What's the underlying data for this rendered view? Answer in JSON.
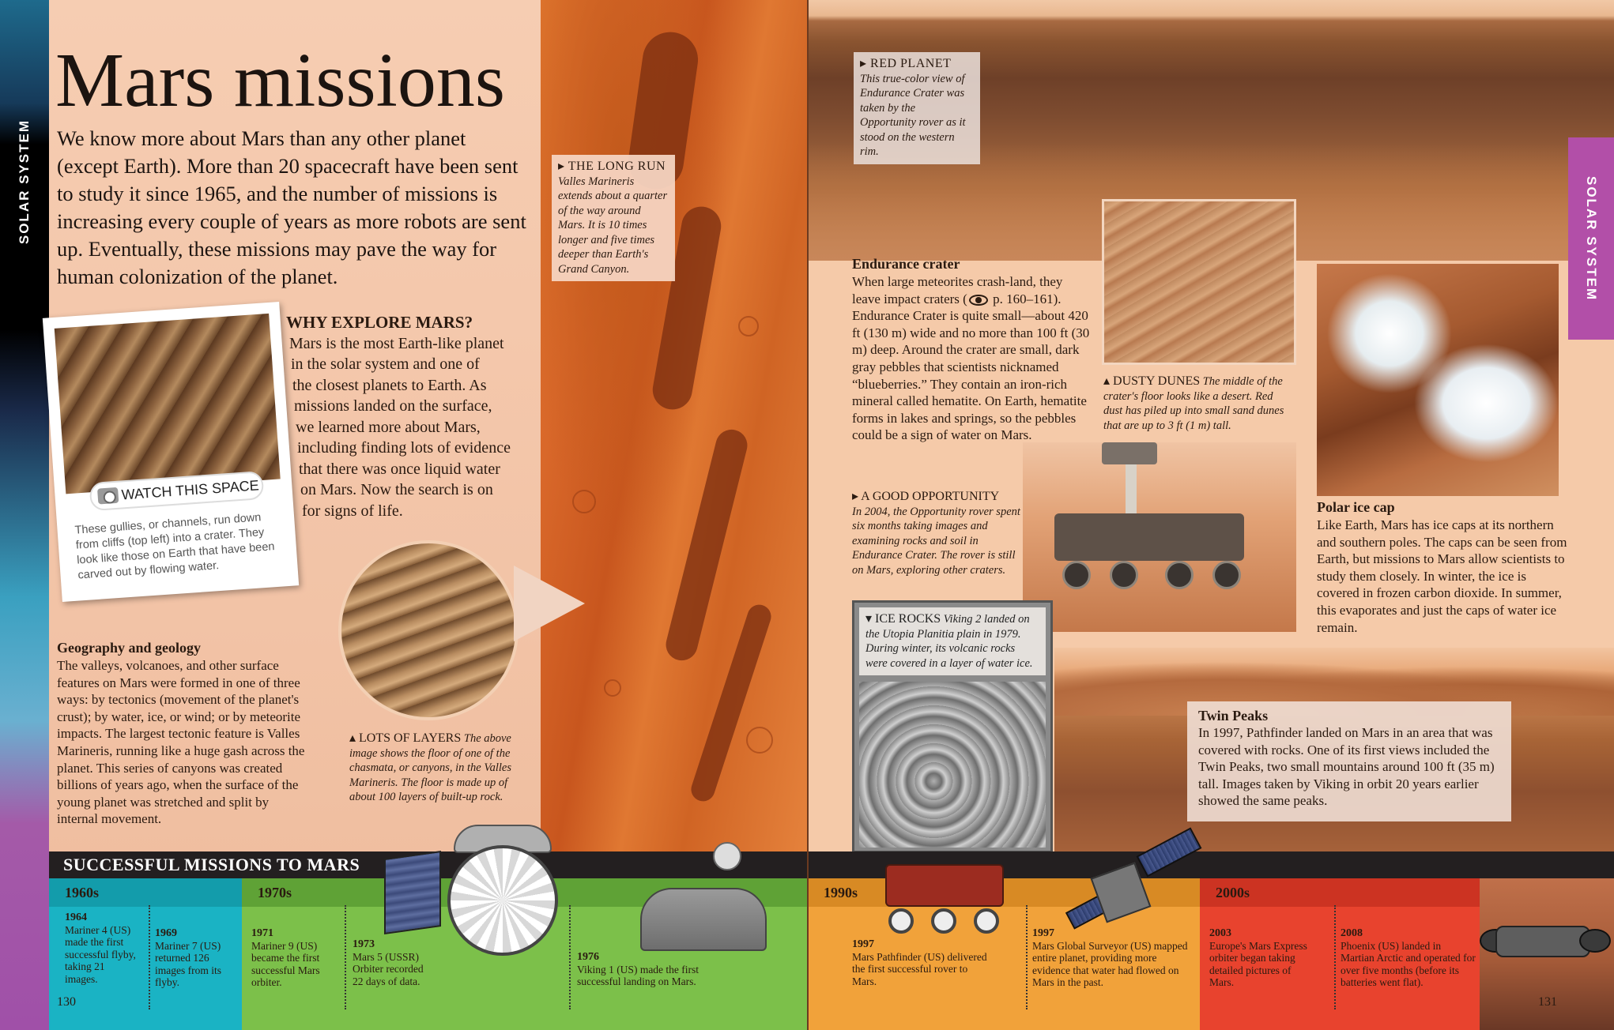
{
  "left_tab_label": "SOLAR SYSTEM",
  "right_tab_label": "SOLAR SYSTEM",
  "title": "Mars missions",
  "intro": "We know more about Mars than any other planet (except Earth). More than 20 spacecraft have been sent to study it since 1965, and the number of missions is increasing every couple of years as more robots are sent up. Eventually, these missions may pave the way for human colonization of the planet.",
  "long_run": {
    "head": "▸ THE LONG RUN",
    "text": "Valles Marineris extends about a quarter of the way around Mars. It is 10 times longer and five times deeper than Earth's Grand Canyon."
  },
  "why_explore": {
    "head": "WHY EXPLORE MARS?",
    "lines": [
      "Mars is the most Earth-like planet",
      "in the solar system and one of",
      "the closest planets to Earth. As",
      "missions landed on the surface,",
      "we learned more about Mars,",
      "including finding lots of evidence",
      "that there was once liquid water",
      "on Mars. Now the search is on",
      "for signs of life."
    ]
  },
  "watch_this_space": {
    "label": "WATCH THIS SPACE",
    "text": "These gullies, or channels, run down from cliffs (top left) into a crater. They look like those on Earth that have been carved out by flowing water."
  },
  "geography": {
    "head": "Geography and geology",
    "text": "The valleys, volcanoes, and other surface features on Mars were formed in one of three ways: by tectonics (movement of the planet's crust); by water, ice, or wind; or by meteorite impacts. The largest tectonic feature is Valles Marineris, running like a huge gash across the planet. This series of canyons was created billions of years ago, when the surface of the young planet was stretched and split by internal movement."
  },
  "lots_of_layers": {
    "head": "▴ LOTS OF LAYERS",
    "text": "The above image shows the floor of one of the chasmata, or canyons, in the Valles Marineris. The floor is made up of about 100 layers of built-up rock."
  },
  "red_planet": {
    "head": "▸ RED PLANET",
    "text": "This true-color view of Endurance Crater was taken by the Opportunity rover as it stood on the western rim."
  },
  "endurance": {
    "head": "Endurance crater",
    "text_before_ref": "When large meteorites crash-land, they leave impact craters (",
    "ref": "p. 160–161",
    "text_after_ref": "). Endurance Crater is quite small—about 420 ft (130 m) wide and no more than 100 ft (30 m) deep. Around the crater are small, dark gray pebbles that scientists nicknamed “blueberries.” They contain an iron-rich mineral called hematite. On Earth, hematite forms in lakes and springs, so the pebbles could be a sign of water on Mars."
  },
  "dusty_dunes": {
    "head": "▴ DUSTY DUNES",
    "text": "The middle of the crater's floor looks like a desert. Red dust has piled up into small sand dunes that are up to 3 ft (1 m) tall."
  },
  "good_opportunity": {
    "head": "▸ A GOOD OPPORTUNITY",
    "text": "In 2004, the Opportunity rover spent six months taking images and examining rocks and soil in Endurance Crater. The rover is still on Mars, exploring other craters."
  },
  "ice_rocks": {
    "head": "▾ ICE ROCKS",
    "text": "Viking 2 landed on the Utopia Planitia plain in 1979. During winter, its volcanic rocks were covered in a layer of water ice."
  },
  "polar": {
    "head": "Polar ice cap",
    "text": "Like Earth, Mars has ice caps at its northern and southern poles. The caps can be seen from Earth, but missions to Mars allow scientists to study them closely. In winter, the ice is covered in frozen carbon dioxide. In summer, this evaporates and just the caps of water ice remain."
  },
  "twin_peaks": {
    "head": "Twin Peaks",
    "text": "In 1997, Pathfinder landed on Mars in an area that was covered with rocks. One of its first views included the Twin Peaks, two small mountains around 100 ft (35 m) tall. Images taken by Viking in orbit 20 years earlier showed the same peaks."
  },
  "timeline": {
    "title": "SUCCESSFUL MISSIONS TO MARS",
    "decades": [
      {
        "label": "1960s",
        "color": "#1ab3c4",
        "head_color": "#139cab"
      },
      {
        "label": "1970s",
        "color": "#7cc04a",
        "head_color": "#5fa236"
      },
      {
        "label": "1990s",
        "color": "#f1a23a",
        "head_color": "#d88a24"
      },
      {
        "label": "2000s",
        "color": "#e8432e",
        "head_color": "#cc3322"
      }
    ],
    "entries": [
      {
        "year": "1964",
        "text": "Mariner 4 (US) made the first successful flyby, taking 21 images."
      },
      {
        "year": "1969",
        "text": "Mariner 7 (US) returned 126 images from its flyby."
      },
      {
        "year": "1971",
        "text": "Mariner 9 (US) became the first successful Mars orbiter."
      },
      {
        "year": "1973",
        "text": "Mars 5 (USSR) Orbiter recorded 22 days of data."
      },
      {
        "year": "1976",
        "text": "Viking 1 (US) made the first successful landing on Mars."
      },
      {
        "year": "1997",
        "text": "Mars Pathfinder (US) delivered the first successful rover to Mars."
      },
      {
        "year": "1997",
        "text": "Mars Global Surveyor (US) mapped entire planet, providing more evidence that water had flowed on Mars in the past."
      },
      {
        "year": "2003",
        "text": "Europe's Mars Express orbiter began taking detailed pictures of Mars."
      },
      {
        "year": "2008",
        "text": "Phoenix (US) landed in Martian Arctic and operated for over five months (before its batteries went flat)."
      }
    ]
  },
  "page_left": "130",
  "page_right": "131",
  "icons": {
    "camera": "camera-icon",
    "eye": "eye-icon"
  }
}
